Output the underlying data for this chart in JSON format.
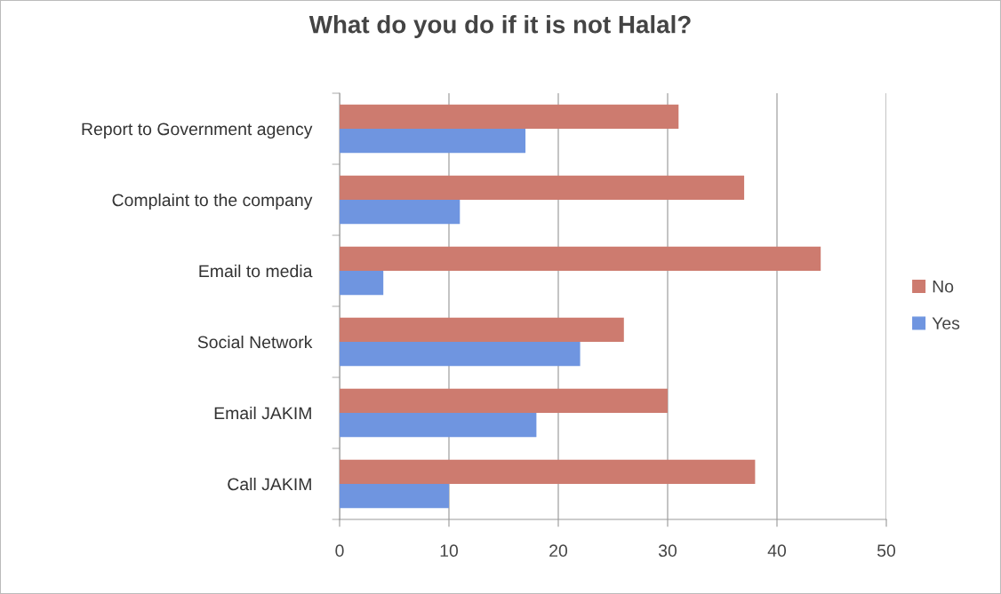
{
  "chart_data": {
    "type": "bar",
    "orientation": "horizontal",
    "title": "What do you do if it is not Halal?",
    "categories": [
      "Report to Government agency",
      "Complaint to the company",
      "Email to media",
      "Social Network",
      "Email JAKIM",
      "Call JAKIM"
    ],
    "series": [
      {
        "name": "No",
        "color": "#cd7b6f",
        "values": [
          31,
          37,
          44,
          26,
          30,
          38
        ]
      },
      {
        "name": "Yes",
        "color": "#6f95e0",
        "values": [
          17,
          11,
          4,
          22,
          18,
          10
        ]
      }
    ],
    "xlim": [
      0,
      50
    ],
    "xticks": [
      0,
      10,
      20,
      30,
      40,
      50
    ],
    "grid": "x",
    "legend": "right"
  }
}
